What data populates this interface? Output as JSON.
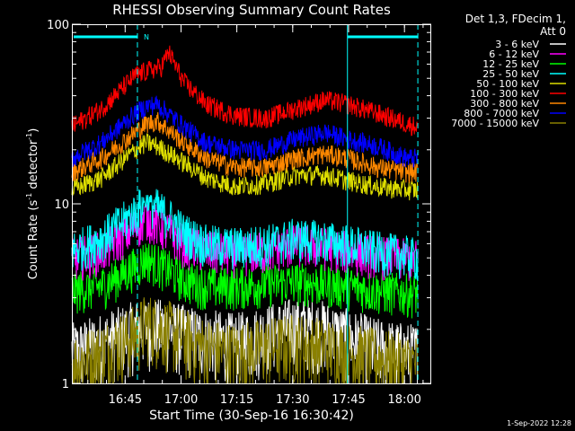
{
  "chart_data": {
    "type": "line",
    "title": "RHESSI Observing Summary Count Rates",
    "xlabel": "Start Time (30-Sep-16 16:30:42)",
    "ylabel_main": "Count Rate (s",
    "ylabel_exp1": "-1",
    "ylabel_mid": " detector",
    "ylabel_exp2": "-1",
    "ylabel_end": ")",
    "y_scale": "log",
    "ylim": [
      1,
      100
    ],
    "xlim_minutes": [
      0,
      96.5
    ],
    "x_ticks": [
      {
        "label": "16:45",
        "minute": 14.3
      },
      {
        "label": "17:00",
        "minute": 29.3
      },
      {
        "label": "17:15",
        "minute": 44.3
      },
      {
        "label": "17:30",
        "minute": 59.3
      },
      {
        "label": "17:45",
        "minute": 74.3
      },
      {
        "label": "18:00",
        "minute": 89.3
      }
    ],
    "y_ticks": [
      {
        "label": "1",
        "value": 1
      },
      {
        "label": "10",
        "value": 10
      },
      {
        "label": "100",
        "value": 100
      }
    ],
    "night_marker_label": "N",
    "markers_minutes": {
      "dashed": [
        17.6,
        92.9
      ],
      "solid": [
        74.0
      ]
    },
    "legend_header": [
      "Det 1,3, FDecim 1,",
      "Att 0"
    ],
    "series": [
      {
        "name": "3 - 6 keV",
        "color": "#ffffff",
        "data_minutes": [
          0,
          8,
          17,
          20,
          26,
          30,
          36,
          44,
          52,
          60,
          68,
          74,
          82,
          90,
          92.9
        ],
        "values": [
          1.5,
          1.7,
          2.0,
          2.1,
          2.0,
          1.9,
          1.8,
          1.7,
          1.9,
          2.1,
          2.0,
          1.8,
          1.6,
          1.5,
          1.5
        ]
      },
      {
        "name": "6 - 12 keV",
        "color": "#ff00ff",
        "data_minutes": [
          0,
          8,
          17,
          20,
          26,
          30,
          36,
          44,
          52,
          60,
          68,
          74,
          82,
          90,
          92.9
        ],
        "values": [
          5.0,
          5.5,
          7.5,
          8.5,
          7.0,
          6.0,
          5.5,
          5.3,
          5.5,
          6.0,
          5.8,
          5.5,
          5.2,
          5.0,
          5.0
        ]
      },
      {
        "name": "12 - 25 keV",
        "color": "#00ff00",
        "data_minutes": [
          0,
          8,
          17,
          20,
          26,
          30,
          36,
          44,
          52,
          60,
          68,
          74,
          82,
          90,
          92.9
        ],
        "values": [
          3.3,
          3.5,
          4.5,
          5.0,
          4.3,
          3.8,
          3.5,
          3.5,
          3.6,
          3.7,
          3.6,
          3.5,
          3.3,
          3.2,
          3.2
        ]
      },
      {
        "name": "25 - 50 keV",
        "color": "#00ffff",
        "data_minutes": [
          0,
          8,
          17,
          20,
          26,
          30,
          36,
          44,
          52,
          60,
          68,
          74,
          82,
          90,
          92.9
        ],
        "values": [
          5.5,
          6.5,
          9.0,
          10.5,
          8.5,
          7.0,
          6.0,
          5.8,
          6.0,
          6.5,
          6.3,
          6.0,
          5.5,
          5.2,
          5.0
        ]
      },
      {
        "name": "50 - 100 keV",
        "color": "#dddd00",
        "data_minutes": [
          0,
          8,
          17,
          20,
          23,
          30,
          36,
          44,
          52,
          60,
          68,
          74,
          82,
          90,
          92.9
        ],
        "values": [
          12.0,
          14.0,
          20.0,
          22.0,
          21.0,
          17.0,
          14.0,
          12.5,
          13.0,
          14.5,
          14.5,
          13.5,
          12.5,
          12.0,
          12.0
        ]
      },
      {
        "name": "100 - 300 keV",
        "color": "#ff0000",
        "data_minutes": [
          0,
          8,
          17,
          20,
          24,
          26,
          30,
          36,
          44,
          52,
          60,
          68,
          74,
          82,
          90,
          92.9
        ],
        "values": [
          27.0,
          34.0,
          52.0,
          55.0,
          58.0,
          70.0,
          48.0,
          36.0,
          31.0,
          30.0,
          34.0,
          38.0,
          36.0,
          32.0,
          28.0,
          27.0
        ]
      },
      {
        "name": "300 - 800 keV",
        "color": "#ff8800",
        "data_minutes": [
          0,
          8,
          17,
          20,
          23,
          30,
          36,
          44,
          52,
          60,
          68,
          74,
          82,
          90,
          92.9
        ],
        "values": [
          15.0,
          18.0,
          25.0,
          28.0,
          29.0,
          22.0,
          18.0,
          16.0,
          16.0,
          18.0,
          19.0,
          18.0,
          16.0,
          15.0,
          15.0
        ]
      },
      {
        "name": "800 - 7000 keV",
        "color": "#0000ff",
        "data_minutes": [
          0,
          8,
          17,
          20,
          23,
          30,
          36,
          44,
          52,
          60,
          68,
          74,
          82,
          90,
          92.9
        ],
        "values": [
          18.0,
          22.0,
          32.0,
          35.0,
          36.0,
          27.0,
          22.0,
          20.0,
          20.0,
          23.0,
          25.0,
          23.0,
          21.0,
          18.0,
          18.0
        ]
      },
      {
        "name": "7000 - 15000 keV",
        "color": "#8a8000",
        "data_minutes": [
          0,
          8,
          17,
          20,
          26,
          30,
          36,
          44,
          52,
          60,
          68,
          74,
          82,
          90,
          92.9
        ],
        "values": [
          1.3,
          1.5,
          1.9,
          2.2,
          2.0,
          1.8,
          1.6,
          1.5,
          1.6,
          1.7,
          1.6,
          1.5,
          1.4,
          1.3,
          1.3
        ]
      }
    ]
  },
  "timestamp": "1-Sep-2022 12:28"
}
